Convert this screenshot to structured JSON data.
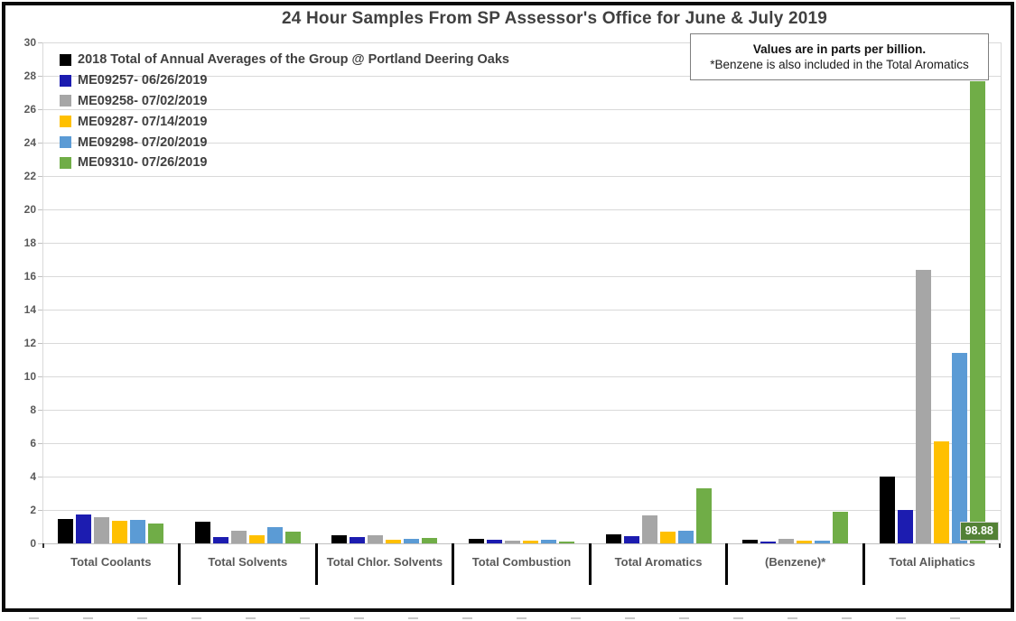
{
  "note_box": {
    "line1": "Values are in parts per billion.",
    "line2": "*Benzene is also included in the Total Aromatics"
  },
  "chart_data": {
    "type": "bar",
    "title": "24 Hour Samples From SP Assessor's Office for June & July 2019",
    "unit": "parts per billion",
    "categories": [
      "Total Coolants",
      "Total Solvents",
      "Total Chlor. Solvents",
      "Total Combustion",
      "Total Aromatics",
      "(Benzene)*",
      "Total Aliphatics"
    ],
    "series": [
      {
        "name": "2018 Total of Annual Averages of the Group @ Portland Deering Oaks",
        "color": "#000000",
        "values": [
          1.45,
          1.3,
          0.5,
          0.25,
          0.55,
          0.2,
          4.0
        ]
      },
      {
        "name": "ME09257- 06/26/2019",
        "color": "#1c1cb0",
        "values": [
          1.75,
          0.4,
          0.4,
          0.2,
          0.45,
          0.1,
          2.0
        ]
      },
      {
        "name": "ME09258- 07/02/2019",
        "color": "#a6a6a6",
        "values": [
          1.55,
          0.75,
          0.5,
          0.15,
          1.65,
          0.25,
          16.4
        ]
      },
      {
        "name": "ME09287- 07/14/2019",
        "color": "#ffc000",
        "values": [
          1.35,
          0.5,
          0.2,
          0.15,
          0.7,
          0.15,
          6.1
        ]
      },
      {
        "name": "ME09298- 07/20/2019",
        "color": "#5b9bd5",
        "values": [
          1.4,
          0.95,
          0.25,
          0.2,
          0.75,
          0.15,
          11.4
        ]
      },
      {
        "name": "ME09310- 07/26/2019",
        "color": "#70ad47",
        "values": [
          1.2,
          0.7,
          0.3,
          0.1,
          3.3,
          1.9,
          98.88
        ]
      }
    ],
    "ylim": [
      0,
      30
    ],
    "ytick_step": 2,
    "ytick_labels": [
      "0",
      "2",
      "4",
      "6",
      "8",
      "10",
      "12",
      "14",
      "16",
      "18",
      "20",
      "22",
      "24",
      "26",
      "28",
      "30"
    ],
    "grid": true,
    "legend_position": "top-left inside plot area",
    "bar_display_cap": 27.7,
    "data_labels": [
      {
        "series_name": "ME09310- 07/26/2019",
        "category": "Total Aliphatics",
        "text": "98.88",
        "box_color": "#538135"
      }
    ]
  },
  "ui_colors": {
    "gridline": "#d9d9d9",
    "axis_line": "#bfbfbf",
    "title_text": "#404040",
    "tick_text": "#595959",
    "category_separator": "#000000",
    "note_border": "#7f7f7f",
    "data_label_bg": "#538135",
    "data_label_text": "#ffffff"
  }
}
